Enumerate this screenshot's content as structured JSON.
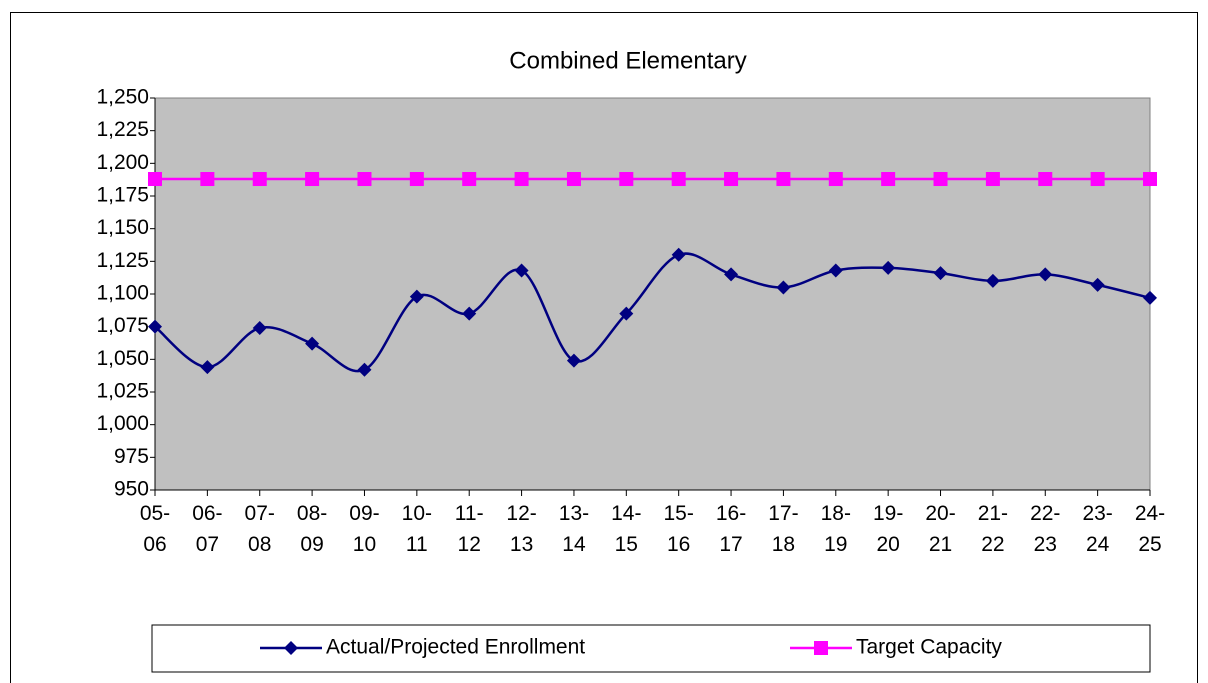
{
  "chart_data": {
    "type": "line",
    "title": "Combined Elementary",
    "categories": [
      "05-06",
      "06-07",
      "07-08",
      "08-09",
      "09-10",
      "10-11",
      "11-12",
      "12-13",
      "13-14",
      "14-15",
      "15-16",
      "16-17",
      "17-18",
      "18-19",
      "19-20",
      "20-21",
      "21-22",
      "22-23",
      "23-24",
      "24-25"
    ],
    "series": [
      {
        "name": "Actual/Projected Enrollment",
        "color": "#000080",
        "marker": "diamond",
        "smooth": true,
        "values": [
          1075,
          1044,
          1074,
          1062,
          1042,
          1098,
          1085,
          1118,
          1049,
          1085,
          1130,
          1115,
          1105,
          1118,
          1120,
          1116,
          1110,
          1115,
          1107,
          1097
        ]
      },
      {
        "name": "Target Capacity",
        "color": "#ff00ff",
        "marker": "square",
        "smooth": false,
        "values": [
          1188,
          1188,
          1188,
          1188,
          1188,
          1188,
          1188,
          1188,
          1188,
          1188,
          1188,
          1188,
          1188,
          1188,
          1188,
          1188,
          1188,
          1188,
          1188,
          1188
        ]
      }
    ],
    "ylim": [
      950,
      1250
    ],
    "yticks": [
      950,
      975,
      {
        "value": 1000,
        "label": "1,000"
      },
      {
        "value": 1025,
        "label": "1,025"
      },
      {
        "value": 1050,
        "label": "1,050"
      },
      {
        "value": 1075,
        "label": "1,075"
      },
      {
        "value": 1100,
        "label": "1,100"
      },
      {
        "value": 1125,
        "label": "1,125"
      },
      {
        "value": 1150,
        "label": "1,150"
      },
      {
        "value": 1175,
        "label": "1,175"
      },
      {
        "value": 1200,
        "label": "1,200"
      },
      {
        "value": 1225,
        "label": "1,225"
      },
      {
        "value": 1250,
        "label": "1,250"
      }
    ],
    "plot_background": "#c0c0c0",
    "grid": false,
    "legend": "bottom"
  }
}
